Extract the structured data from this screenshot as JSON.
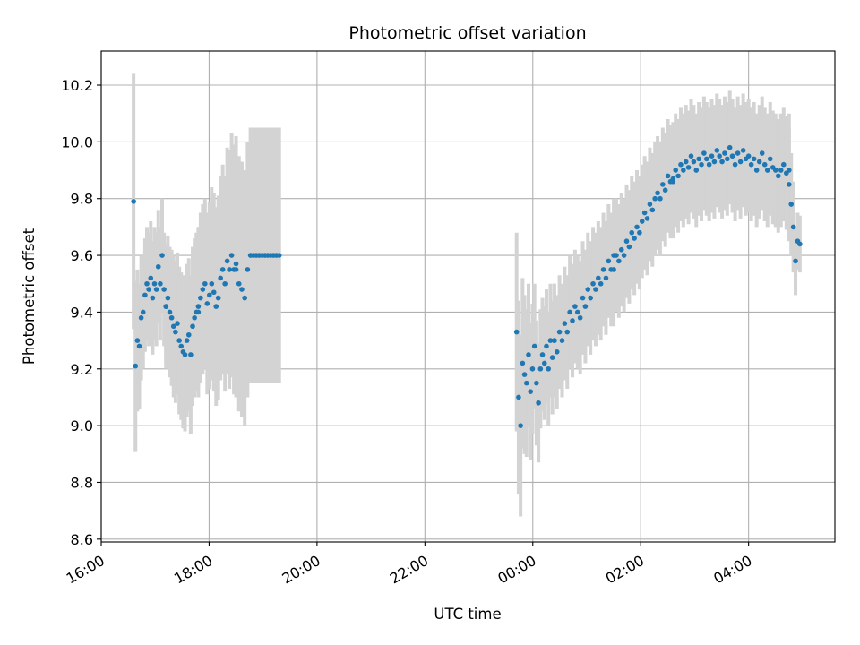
{
  "chart_data": {
    "type": "scatter",
    "title": "Photometric offset variation",
    "xlabel": "UTC time",
    "ylabel": "Photometric offset",
    "x_unit": "hours",
    "x_tick_values": [
      16,
      18,
      20,
      22,
      24,
      26,
      28
    ],
    "x_tick_labels": [
      "16:00",
      "18:00",
      "20:00",
      "22:00",
      "00:00",
      "02:00",
      "04:00"
    ],
    "xlim": [
      16,
      29.6
    ],
    "y_tick_values": [
      8.6,
      8.8,
      9.0,
      9.2,
      9.4,
      9.6,
      9.8,
      10.0,
      10.2
    ],
    "y_tick_labels": [
      "8.6",
      "8.8",
      "9.0",
      "9.2",
      "9.4",
      "9.6",
      "9.8",
      "10.0",
      "10.2"
    ],
    "ylim": [
      8.59,
      10.32
    ],
    "grid": true,
    "colors": {
      "points": "#1f77b4",
      "errorbars": "#d3d3d3",
      "grid": "#b0b0b0"
    },
    "segments": [
      {
        "start": 16.6,
        "end": 17.2,
        "y": [
          9.79,
          9.21,
          9.3,
          9.28,
          9.38,
          9.4,
          9.46,
          9.5,
          9.48,
          9.52,
          9.45,
          9.5,
          9.48,
          9.56,
          9.5,
          9.6,
          9.48,
          9.42
        ],
        "err": [
          0.45,
          0.3,
          0.25,
          0.22,
          0.22,
          0.2,
          0.2,
          0.2,
          0.2,
          0.2,
          0.2,
          0.2,
          0.2,
          0.2,
          0.2,
          0.2,
          0.2,
          0.2
        ]
      },
      {
        "start": 17.2,
        "end": 17.8,
        "y": [
          9.42,
          9.45,
          9.4,
          9.38,
          9.35,
          9.33,
          9.36,
          9.3,
          9.28,
          9.26,
          9.25,
          9.3,
          9.32,
          9.25,
          9.35,
          9.38,
          9.4,
          9.42
        ],
        "err": [
          0.22,
          0.22,
          0.23,
          0.24,
          0.25,
          0.25,
          0.25,
          0.26,
          0.26,
          0.27,
          0.27,
          0.27,
          0.27,
          0.28,
          0.28,
          0.28,
          0.28,
          0.28
        ]
      },
      {
        "start": 17.8,
        "end": 18.5,
        "y": [
          9.4,
          9.45,
          9.48,
          9.5,
          9.43,
          9.46,
          9.5,
          9.47,
          9.42,
          9.45,
          9.52,
          9.55,
          9.5,
          9.58,
          9.55,
          9.6,
          9.55,
          9.57
        ],
        "err": [
          0.3,
          0.3,
          0.3,
          0.3,
          0.32,
          0.33,
          0.34,
          0.35,
          0.35,
          0.36,
          0.36,
          0.37,
          0.38,
          0.4,
          0.42,
          0.43,
          0.44,
          0.45
        ]
      },
      {
        "start": 18.5,
        "end": 19.3,
        "y": [
          9.55,
          9.5,
          9.48,
          9.45,
          9.55,
          9.6,
          9.6,
          9.6,
          9.6,
          9.6,
          9.6,
          9.6,
          9.6,
          9.6,
          9.6,
          9.6
        ],
        "err": [
          0.45,
          0.45,
          0.45,
          0.45,
          0.45,
          0.45,
          0.45,
          0.45,
          0.45,
          0.45,
          0.45,
          0.45,
          0.45,
          0.45,
          0.45,
          0.45
        ]
      },
      {
        "start": 23.7,
        "end": 24.4,
        "y": [
          9.33,
          9.1,
          9.0,
          9.22,
          9.18,
          9.15,
          9.25,
          9.12,
          9.2,
          9.28,
          9.15,
          9.08,
          9.2,
          9.25,
          9.22,
          9.28,
          9.2,
          9.3,
          9.24,
          9.3
        ],
        "err": [
          0.35,
          0.34,
          0.32,
          0.3,
          0.28,
          0.26,
          0.25,
          0.24,
          0.23,
          0.22,
          0.22,
          0.21,
          0.21,
          0.2,
          0.2,
          0.2,
          0.2,
          0.2,
          0.2,
          0.2
        ]
      },
      {
        "start": 24.4,
        "end": 25.5,
        "y": [
          9.3,
          9.26,
          9.33,
          9.3,
          9.36,
          9.33,
          9.4,
          9.37,
          9.42,
          9.4,
          9.38,
          9.45,
          9.42,
          9.48,
          9.45,
          9.5,
          9.48,
          9.52,
          9.5,
          9.55,
          9.52,
          9.58,
          9.55,
          9.6
        ],
        "err": [
          0.2,
          0.2,
          0.2,
          0.2,
          0.2,
          0.2,
          0.2,
          0.2,
          0.2,
          0.2,
          0.2,
          0.2,
          0.2,
          0.2,
          0.2,
          0.2,
          0.2,
          0.2,
          0.2,
          0.2,
          0.2,
          0.2,
          0.2,
          0.2
        ]
      },
      {
        "start": 25.5,
        "end": 26.6,
        "y": [
          9.55,
          9.6,
          9.58,
          9.62,
          9.6,
          9.65,
          9.63,
          9.68,
          9.66,
          9.7,
          9.68,
          9.72,
          9.75,
          9.73,
          9.78,
          9.76,
          9.8,
          9.82,
          9.8,
          9.85,
          9.83,
          9.88,
          9.86,
          9.87
        ],
        "err": [
          0.2,
          0.2,
          0.2,
          0.2,
          0.2,
          0.2,
          0.2,
          0.2,
          0.2,
          0.2,
          0.2,
          0.2,
          0.2,
          0.2,
          0.2,
          0.2,
          0.2,
          0.2,
          0.2,
          0.2,
          0.2,
          0.2,
          0.2,
          0.2
        ]
      },
      {
        "start": 26.6,
        "end": 27.7,
        "y": [
          9.86,
          9.9,
          9.88,
          9.92,
          9.9,
          9.93,
          9.91,
          9.95,
          9.93,
          9.9,
          9.94,
          9.92,
          9.96,
          9.94,
          9.92,
          9.95,
          9.93,
          9.97,
          9.95,
          9.93,
          9.96,
          9.94,
          9.98,
          9.95
        ],
        "err": [
          0.2,
          0.2,
          0.2,
          0.2,
          0.2,
          0.2,
          0.2,
          0.2,
          0.2,
          0.2,
          0.2,
          0.2,
          0.2,
          0.2,
          0.2,
          0.2,
          0.2,
          0.2,
          0.2,
          0.2,
          0.2,
          0.2,
          0.2,
          0.2
        ]
      },
      {
        "start": 27.7,
        "end": 28.75,
        "y": [
          9.95,
          9.92,
          9.96,
          9.93,
          9.97,
          9.94,
          9.95,
          9.92,
          9.94,
          9.9,
          9.93,
          9.96,
          9.92,
          9.9,
          9.94,
          9.91,
          9.9,
          9.88,
          9.9,
          9.92,
          9.89,
          9.9
        ],
        "err": [
          0.2,
          0.2,
          0.2,
          0.2,
          0.2,
          0.2,
          0.2,
          0.2,
          0.2,
          0.2,
          0.2,
          0.2,
          0.2,
          0.2,
          0.2,
          0.2,
          0.2,
          0.2,
          0.2,
          0.2,
          0.2,
          0.2
        ]
      },
      {
        "start": 28.75,
        "end": 28.95,
        "y": [
          9.85,
          9.78,
          9.7,
          9.58,
          9.65,
          9.64
        ],
        "err": [
          0.2,
          0.18,
          0.16,
          0.12,
          0.1,
          0.1
        ]
      }
    ]
  }
}
